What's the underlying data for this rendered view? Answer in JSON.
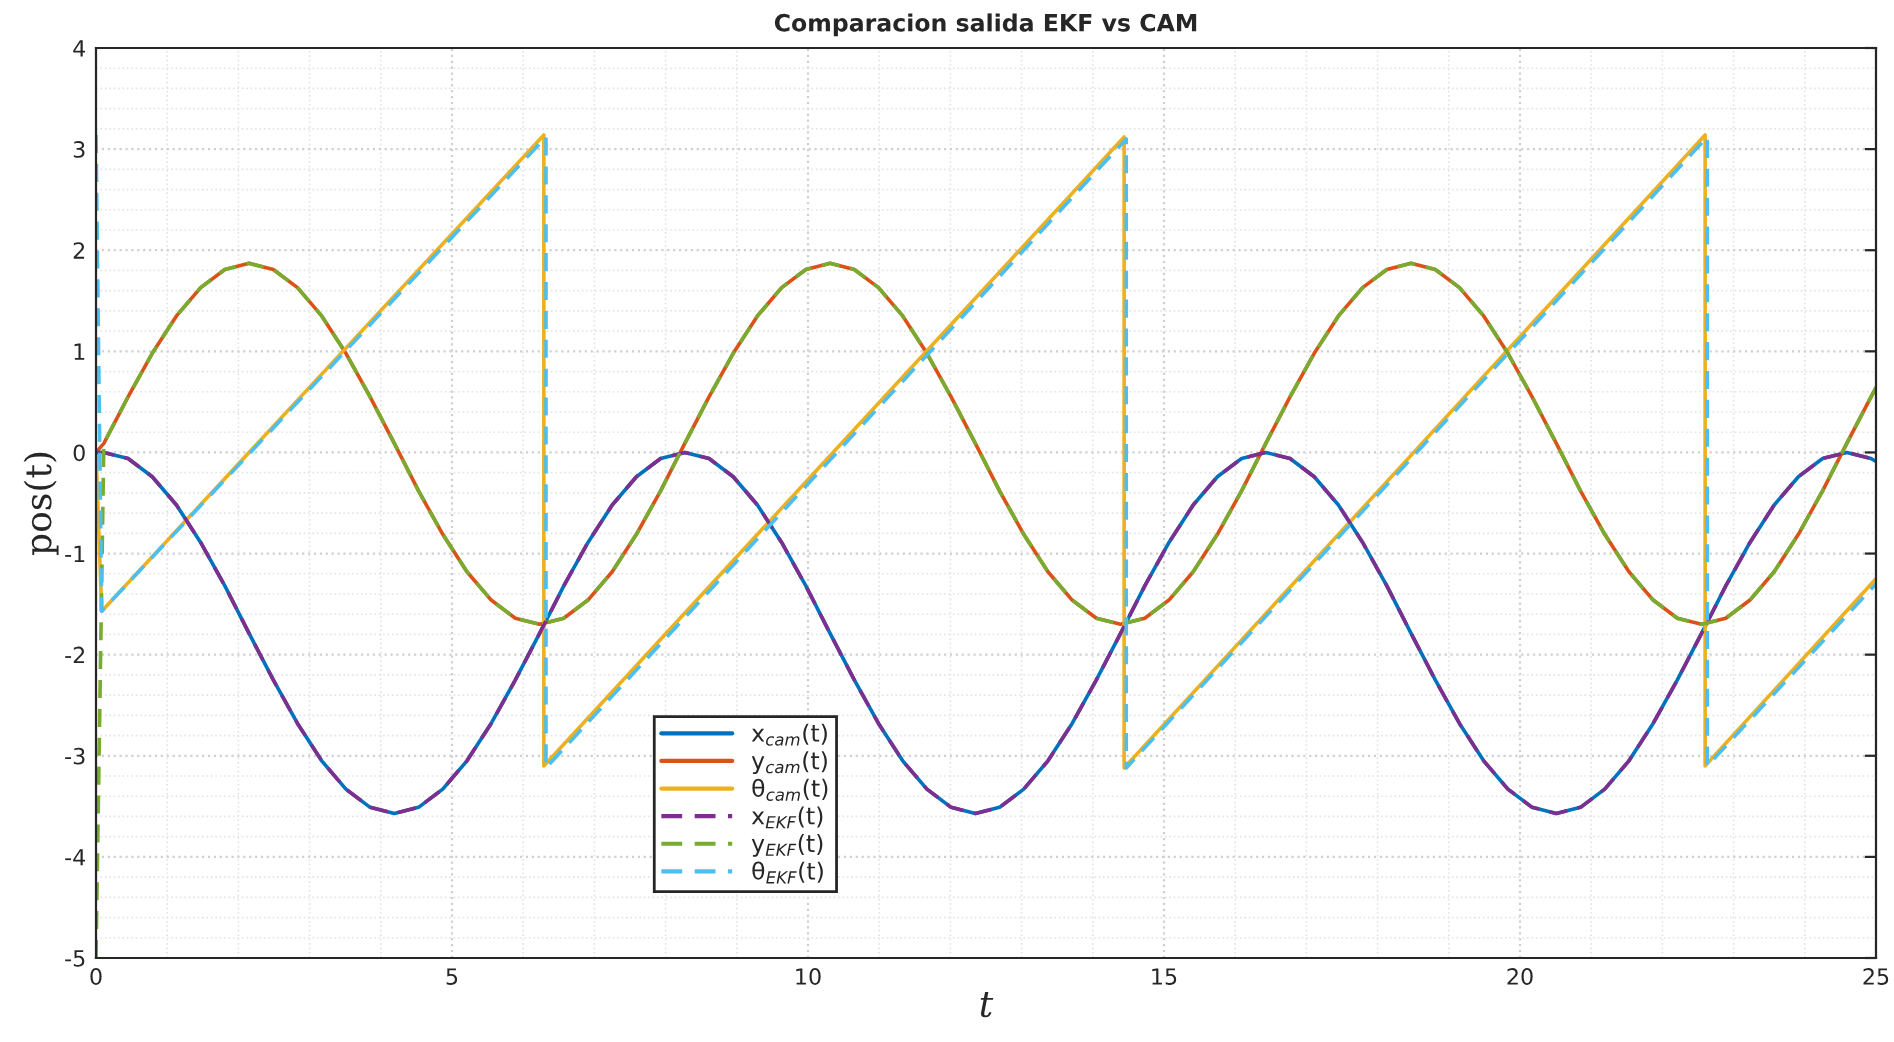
{
  "chart_data": {
    "type": "line",
    "title": "Comparacion salida EKF vs CAM",
    "xlabel": "t",
    "ylabel": "pos(t)",
    "xlim": [
      0,
      25
    ],
    "xticks": [
      0,
      5,
      10,
      15,
      20,
      25
    ],
    "ylim": [
      -5,
      4
    ],
    "yticks": [
      -5,
      -4,
      -3,
      -2,
      -1,
      0,
      1,
      2,
      3,
      4
    ],
    "grid": true,
    "legend": "bottom",
    "marker": "none",
    "series": [
      {
        "name": "x$_{cam}$(t)",
        "color": "#0072bd",
        "line_style": "solid",
        "x": [
          0,
          0.11,
          0.45,
          0.79,
          1.13,
          1.47,
          1.81,
          2.15,
          2.49,
          2.83,
          3.17,
          3.51,
          3.85,
          4.19,
          4.53,
          4.87,
          5.21,
          5.55,
          5.89,
          6.23,
          6.57,
          6.91,
          7.25,
          7.59,
          7.93,
          8.27,
          8.61,
          8.95,
          9.29,
          9.63,
          9.97,
          10.31,
          10.65,
          10.99,
          11.33,
          11.67,
          12.01,
          12.35,
          12.69,
          13.03,
          13.37,
          13.71,
          14.05,
          14.39,
          14.73,
          15.07,
          15.41,
          15.75,
          16.09,
          16.43,
          16.77,
          17.11,
          17.45,
          17.79,
          18.13,
          18.47,
          18.81,
          19.15,
          19.49,
          19.83,
          20.17,
          20.51,
          20.85,
          21.19,
          21.53,
          21.87,
          22.21,
          22.55,
          22.89,
          23.23,
          23.57,
          23.91,
          24.25,
          24.59,
          24.93,
          25
        ],
        "values": [
          0,
          0,
          -0.06,
          -0.24,
          -0.52,
          -0.89,
          -1.32,
          -1.79,
          -2.25,
          -2.68,
          -3.05,
          -3.33,
          -3.51,
          -3.57,
          -3.51,
          -3.33,
          -3.05,
          -2.68,
          -2.25,
          -1.79,
          -1.32,
          -0.89,
          -0.52,
          -0.24,
          -0.06,
          0,
          -0.06,
          -0.24,
          -0.52,
          -0.89,
          -1.32,
          -1.79,
          -2.25,
          -2.68,
          -3.05,
          -3.33,
          -3.51,
          -3.57,
          -3.51,
          -3.33,
          -3.05,
          -2.68,
          -2.25,
          -1.79,
          -1.32,
          -0.89,
          -0.52,
          -0.24,
          -0.06,
          0,
          -0.06,
          -0.24,
          -0.52,
          -0.89,
          -1.32,
          -1.79,
          -2.25,
          -2.68,
          -3.05,
          -3.33,
          -3.51,
          -3.57,
          -3.51,
          -3.33,
          -3.05,
          -2.68,
          -2.25,
          -1.79,
          -1.32,
          -0.89,
          -0.52,
          -0.24,
          -0.06,
          0,
          -0.06,
          -0.09
        ]
      },
      {
        "name": "y$_{cam}$(t)",
        "color": "#d95319",
        "line_style": "solid",
        "x": [
          0,
          0.11,
          0.45,
          0.79,
          1.13,
          1.47,
          1.81,
          2.15,
          2.49,
          2.83,
          3.17,
          3.51,
          3.85,
          4.19,
          4.53,
          4.87,
          5.21,
          5.55,
          5.89,
          6.23,
          6.57,
          6.91,
          7.25,
          7.59,
          7.93,
          8.27,
          8.61,
          8.95,
          9.29,
          9.63,
          9.97,
          10.31,
          10.65,
          10.99,
          11.33,
          11.67,
          12.01,
          12.35,
          12.69,
          13.03,
          13.37,
          13.71,
          14.05,
          14.39,
          14.73,
          15.07,
          15.41,
          15.75,
          16.09,
          16.43,
          16.77,
          17.11,
          17.45,
          17.79,
          18.13,
          18.47,
          18.81,
          19.15,
          19.49,
          19.83,
          20.17,
          20.51,
          20.85,
          21.19,
          21.53,
          21.87,
          22.21,
          22.55,
          22.89,
          23.23,
          23.57,
          23.91,
          24.25,
          24.59,
          24.93,
          25
        ],
        "values": [
          0,
          0.09,
          0.55,
          0.98,
          1.35,
          1.63,
          1.81,
          1.87,
          1.81,
          1.63,
          1.35,
          0.98,
          0.55,
          0.09,
          -0.38,
          -0.81,
          -1.18,
          -1.46,
          -1.64,
          -1.7,
          -1.64,
          -1.46,
          -1.18,
          -0.81,
          -0.38,
          0.09,
          0.55,
          0.98,
          1.35,
          1.63,
          1.81,
          1.87,
          1.81,
          1.63,
          1.35,
          0.98,
          0.55,
          0.09,
          -0.38,
          -0.81,
          -1.18,
          -1.46,
          -1.64,
          -1.7,
          -1.64,
          -1.46,
          -1.18,
          -0.81,
          -0.38,
          0.09,
          0.55,
          0.98,
          1.35,
          1.63,
          1.81,
          1.87,
          1.81,
          1.63,
          1.35,
          0.98,
          0.55,
          0.09,
          -0.38,
          -0.81,
          -1.18,
          -1.46,
          -1.64,
          -1.7,
          -1.64,
          -1.46,
          -1.18,
          -0.81,
          -0.38,
          0.09,
          0.55,
          0.64
        ]
      },
      {
        "name": "θ$_{cam}$(t)",
        "color": "#edb120",
        "line_style": "solid",
        "x": [
          0,
          0.08,
          6.29,
          6.29,
          14.44,
          14.44,
          22.6,
          22.6,
          25
        ],
        "values": [
          0,
          -1.57,
          3.14,
          -3.1,
          3.12,
          -3.12,
          3.14,
          -3.1,
          -1.25
        ]
      },
      {
        "name": "x$_{EKF}$(t)",
        "color": "#7e2f8e",
        "line_style": "dashed",
        "x": [
          0,
          0.11,
          0.45,
          0.79,
          1.13,
          1.47,
          1.81,
          2.15,
          2.49,
          2.83,
          3.17,
          3.51,
          3.85,
          4.19,
          4.53,
          4.87,
          5.21,
          5.55,
          5.89,
          6.23,
          6.57,
          6.91,
          7.25,
          7.59,
          7.93,
          8.27,
          8.61,
          8.95,
          9.29,
          9.63,
          9.97,
          10.31,
          10.65,
          10.99,
          11.33,
          11.67,
          12.01,
          12.35,
          12.69,
          13.03,
          13.37,
          13.71,
          14.05,
          14.39,
          14.73,
          15.07,
          15.41,
          15.75,
          16.09,
          16.43,
          16.77,
          17.11,
          17.45,
          17.79,
          18.13,
          18.47,
          18.81,
          19.15,
          19.49,
          19.83,
          20.17,
          20.51,
          20.85,
          21.19,
          21.53,
          21.87,
          22.21,
          22.55,
          22.89,
          23.23,
          23.57,
          23.91,
          24.25,
          24.59,
          24.93,
          25
        ],
        "values": [
          0,
          0,
          -0.06,
          -0.24,
          -0.52,
          -0.89,
          -1.32,
          -1.79,
          -2.25,
          -2.68,
          -3.05,
          -3.33,
          -3.51,
          -3.57,
          -3.51,
          -3.33,
          -3.05,
          -2.68,
          -2.25,
          -1.79,
          -1.32,
          -0.89,
          -0.52,
          -0.24,
          -0.06,
          0,
          -0.06,
          -0.24,
          -0.52,
          -0.89,
          -1.32,
          -1.79,
          -2.25,
          -2.68,
          -3.05,
          -3.33,
          -3.51,
          -3.57,
          -3.51,
          -3.33,
          -3.05,
          -2.68,
          -2.25,
          -1.79,
          -1.32,
          -0.89,
          -0.52,
          -0.24,
          -0.06,
          0,
          -0.06,
          -0.24,
          -0.52,
          -0.89,
          -1.32,
          -1.79,
          -2.25,
          -2.68,
          -3.05,
          -3.33,
          -3.51,
          -3.57,
          -3.51,
          -3.33,
          -3.05,
          -2.68,
          -2.25,
          -1.79,
          -1.32,
          -0.89,
          -0.52,
          -0.24,
          -0.06,
          0,
          -0.06,
          -0.09
        ]
      },
      {
        "name": "y$_{EKF}$(t)",
        "color": "#77ac30",
        "line_style": "dashed",
        "x": [
          0,
          0.11,
          0.45,
          0.79,
          1.13,
          1.47,
          1.81,
          2.15,
          2.49,
          2.83,
          3.17,
          3.51,
          3.85,
          4.19,
          4.53,
          4.87,
          5.21,
          5.55,
          5.89,
          6.23,
          6.57,
          6.91,
          7.25,
          7.59,
          7.93,
          8.27,
          8.61,
          8.95,
          9.29,
          9.63,
          9.97,
          10.31,
          10.65,
          10.99,
          11.33,
          11.67,
          12.01,
          12.35,
          12.69,
          13.03,
          13.37,
          13.71,
          14.05,
          14.39,
          14.73,
          15.07,
          15.41,
          15.75,
          16.09,
          16.43,
          16.77,
          17.11,
          17.45,
          17.79,
          18.13,
          18.47,
          18.81,
          19.15,
          19.49,
          19.83,
          20.17,
          20.51,
          20.85,
          21.19,
          21.53,
          21.87,
          22.21,
          22.55,
          22.89,
          23.23,
          23.57,
          23.91,
          24.25,
          24.59,
          24.93,
          25
        ],
        "values": [
          -5,
          0.09,
          0.55,
          0.98,
          1.35,
          1.63,
          1.81,
          1.87,
          1.81,
          1.63,
          1.35,
          0.98,
          0.55,
          0.09,
          -0.38,
          -0.81,
          -1.18,
          -1.46,
          -1.64,
          -1.7,
          -1.64,
          -1.46,
          -1.18,
          -0.81,
          -0.38,
          0.09,
          0.55,
          0.98,
          1.35,
          1.63,
          1.81,
          1.87,
          1.81,
          1.63,
          1.35,
          0.98,
          0.55,
          0.09,
          -0.38,
          -0.81,
          -1.18,
          -1.46,
          -1.64,
          -1.7,
          -1.64,
          -1.46,
          -1.18,
          -0.81,
          -0.38,
          0.09,
          0.55,
          0.98,
          1.35,
          1.63,
          1.81,
          1.87,
          1.81,
          1.63,
          1.35,
          0.98,
          0.55,
          0.09,
          -0.38,
          -0.81,
          -1.18,
          -1.46,
          -1.64,
          -1.7,
          -1.64,
          -1.46,
          -1.18,
          -0.81,
          -0.38,
          0.09,
          0.55,
          0.64
        ]
      },
      {
        "name": "θ$_{EKF}$(t)",
        "color": "#4dbeee",
        "line_style": "dashed",
        "x": [
          0,
          0.08,
          6.32,
          6.32,
          14.47,
          14.47,
          22.63,
          22.63,
          25
        ],
        "values": [
          3.14,
          -1.57,
          3.12,
          -3.12,
          3.1,
          -3.12,
          3.12,
          -3.1,
          -1.3
        ]
      }
    ]
  }
}
